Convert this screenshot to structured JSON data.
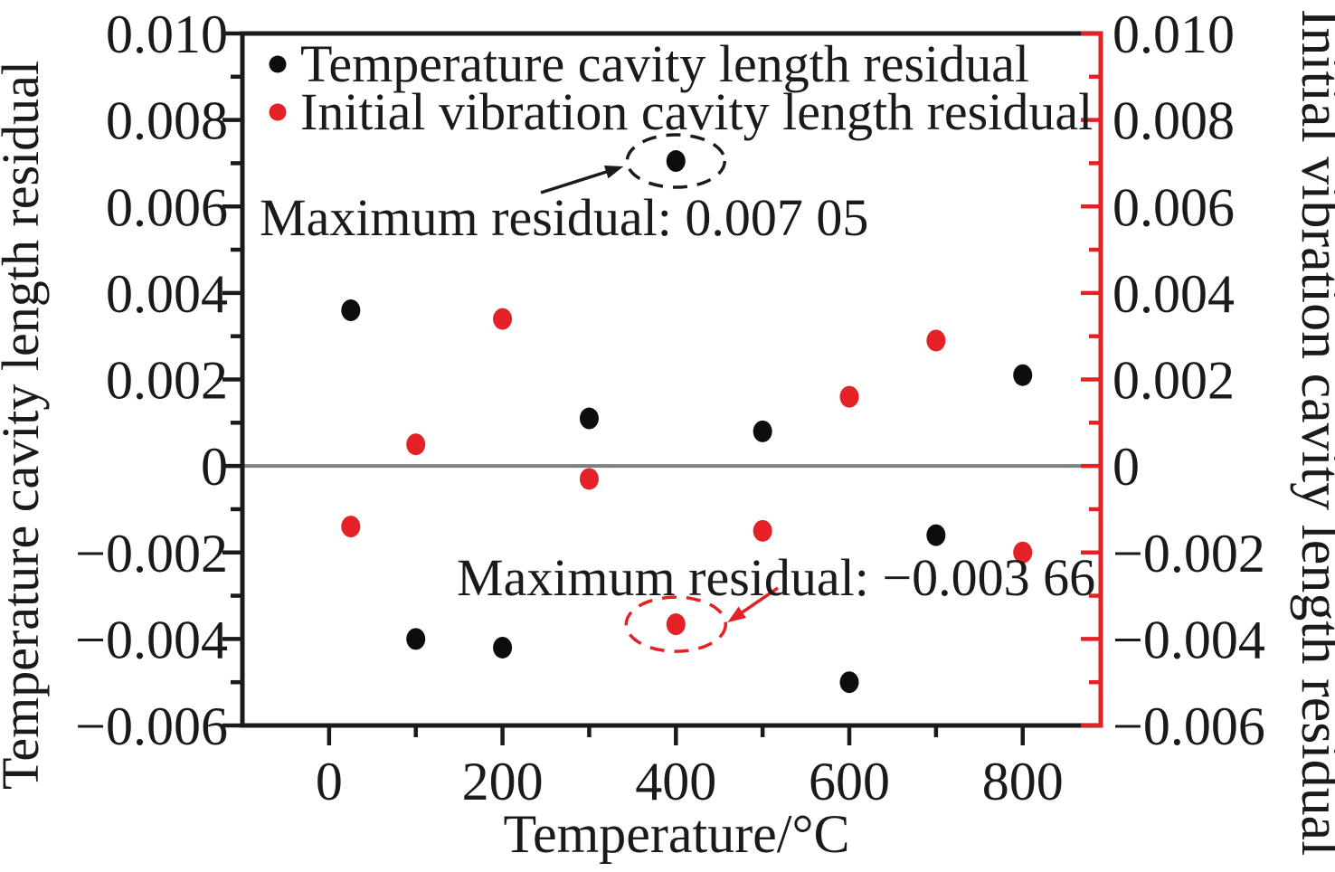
{
  "figure": {
    "background": "#ffffff"
  },
  "chart_data": {
    "type": "scatter",
    "title": "",
    "xlabel": "Temperature/°C",
    "ylabel_left": "Temperature cavity length residual",
    "ylabel_right": "Initial vibration cavity length residual",
    "xlim": [
      -100,
      890
    ],
    "ylim": [
      -0.006,
      0.01
    ],
    "grid": false,
    "legend_position": "top-left-inside",
    "x_major_ticks": [
      0,
      200,
      400,
      600,
      800
    ],
    "x_tick_labels": [
      "0",
      "200",
      "400",
      "600",
      "800"
    ],
    "x_minor_ticks": [
      100,
      300,
      500,
      700
    ],
    "y_major_ticks": [
      0.01,
      0.008,
      0.006,
      0.004,
      0.002,
      0,
      -0.002,
      -0.004,
      -0.006
    ],
    "y_tick_labels": [
      "0.010",
      "0.008",
      "0.006",
      "0.004",
      "0.002",
      "0",
      "−0.002",
      "−0.004",
      "−0.006"
    ],
    "y_minor_ticks": [
      0.009,
      0.007,
      0.005,
      0.003,
      0.001,
      -0.001,
      -0.003,
      -0.005
    ],
    "zero_line": {
      "y": 0,
      "color": "#808080"
    },
    "axis_colors": {
      "left": "#1a1a1a",
      "bottom": "#1a1a1a",
      "top": "#1a1a1a",
      "right": "#e32127"
    },
    "series": [
      {
        "name": "Temperature cavity length residual",
        "color": "#0d0d0d",
        "marker": "circle",
        "x": [
          25,
          100,
          200,
          300,
          400,
          500,
          600,
          700,
          800
        ],
        "values": [
          0.0036,
          -0.004,
          -0.0042,
          0.0011,
          0.00705,
          0.0008,
          -0.005,
          -0.0016,
          0.0021
        ]
      },
      {
        "name": "Initial vibration cavity length residual",
        "color": "#e32127",
        "marker": "circle",
        "x": [
          25,
          100,
          200,
          300,
          400,
          500,
          600,
          700,
          800
        ],
        "values": [
          -0.0014,
          0.0005,
          0.0034,
          -0.0003,
          -0.00366,
          -0.0015,
          0.0016,
          0.0029,
          -0.002
        ]
      }
    ],
    "annotations": [
      {
        "id": "max-black",
        "text": "Maximum residual: 0.007 05",
        "color": "#1a1a1a",
        "target": {
          "x": 400,
          "y": 0.00705
        }
      },
      {
        "id": "max-red",
        "text": "Maximum residual: −0.003 66",
        "color": "#e32127",
        "target": {
          "x": 400,
          "y": -0.00366
        }
      }
    ]
  }
}
